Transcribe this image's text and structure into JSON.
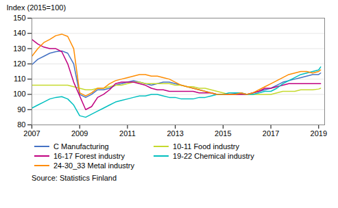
{
  "chart_data": {
    "type": "line",
    "ylabel": "Index (2015=100)",
    "source": "Source: Statistics Finland",
    "x": [
      2007.0,
      2007.25,
      2007.5,
      2007.75,
      2008.0,
      2008.25,
      2008.5,
      2008.75,
      2009.0,
      2009.25,
      2009.5,
      2009.75,
      2010.0,
      2010.25,
      2010.5,
      2010.75,
      2011.0,
      2011.25,
      2011.5,
      2011.75,
      2012.0,
      2012.25,
      2012.5,
      2012.75,
      2013.0,
      2013.25,
      2013.5,
      2013.75,
      2014.0,
      2014.25,
      2014.5,
      2014.75,
      2015.0,
      2015.25,
      2015.5,
      2015.75,
      2016.0,
      2016.25,
      2016.5,
      2016.75,
      2017.0,
      2017.25,
      2017.5,
      2017.75,
      2018.0,
      2018.25,
      2018.5,
      2018.75,
      2019.0,
      2019.083
    ],
    "series": [
      {
        "name": "C Manufacturing",
        "color": "#4472C4",
        "values": [
          119.5,
          123,
          125,
          127,
          128,
          128.5,
          127,
          120,
          100,
          98,
          100,
          103,
          103,
          104,
          106,
          107,
          108,
          109,
          108,
          107,
          106,
          107,
          108,
          108,
          107,
          106,
          105,
          104,
          103,
          102,
          101,
          100,
          100,
          100,
          100.5,
          101,
          100,
          101,
          102,
          103,
          104,
          106,
          108,
          109,
          110,
          111,
          112,
          113,
          113,
          114
        ]
      },
      {
        "name": "10-11 Food industry",
        "color": "#C5D92D",
        "values": [
          106,
          106,
          106,
          106,
          106,
          106,
          106,
          105,
          104,
          103,
          103,
          104,
          104,
          105,
          106,
          106,
          107,
          108,
          108,
          107,
          107,
          107,
          107,
          107,
          106,
          106,
          105,
          105,
          104,
          104,
          103,
          102,
          101,
          100,
          100,
          100,
          100,
          100,
          100,
          100,
          100,
          101,
          102,
          102,
          102,
          103,
          103,
          103,
          103.5,
          104
        ]
      },
      {
        "name": "16-17 Forest industry",
        "color": "#C00080",
        "values": [
          136,
          133,
          131,
          130,
          130,
          128,
          120,
          108,
          99,
          90,
          92,
          98,
          100,
          103,
          107,
          108,
          108,
          108,
          107,
          106,
          104,
          103,
          103,
          102,
          102,
          102,
          102,
          102,
          101,
          101,
          101,
          100,
          100,
          100,
          100,
          100,
          100,
          101,
          102,
          104,
          104,
          105,
          106,
          107,
          107,
          107,
          107,
          107,
          107,
          107
        ]
      },
      {
        "name": "19-22 Chemical industry",
        "color": "#00BFBF",
        "values": [
          91,
          93,
          95,
          97,
          98,
          98.5,
          97,
          93,
          86,
          85,
          87,
          89,
          91,
          93,
          95,
          96,
          97,
          98,
          99,
          99,
          100,
          100,
          99,
          98,
          98,
          97,
          97,
          97,
          98,
          98,
          99,
          100,
          100,
          101,
          101,
          101,
          100,
          100,
          101,
          102,
          102,
          104,
          107,
          109,
          111,
          113,
          114,
          115,
          116,
          118
        ]
      },
      {
        "name": "24-30_33 Metal industry",
        "color": "#FF8C00",
        "values": [
          125,
          130,
          134,
          136,
          138.5,
          139.5,
          138,
          130,
          101,
          99,
          101,
          104,
          104,
          107,
          109,
          110,
          111,
          112,
          113,
          113,
          112,
          112,
          111,
          110,
          108,
          106,
          105,
          104,
          103,
          102,
          101,
          100,
          100,
          100,
          100,
          101,
          100,
          101,
          103,
          105,
          107,
          109,
          111,
          113,
          114,
          115,
          115,
          114,
          115,
          116
        ]
      }
    ],
    "xlim": [
      2007.0,
      2019.25
    ],
    "xticks": [
      2007,
      2009,
      2011,
      2013,
      2015,
      2017,
      2019
    ],
    "ylim": [
      80,
      150
    ],
    "yticks": [
      80,
      90,
      100,
      110,
      120,
      130,
      140,
      150
    ],
    "grid": true,
    "legend": "bottom"
  }
}
